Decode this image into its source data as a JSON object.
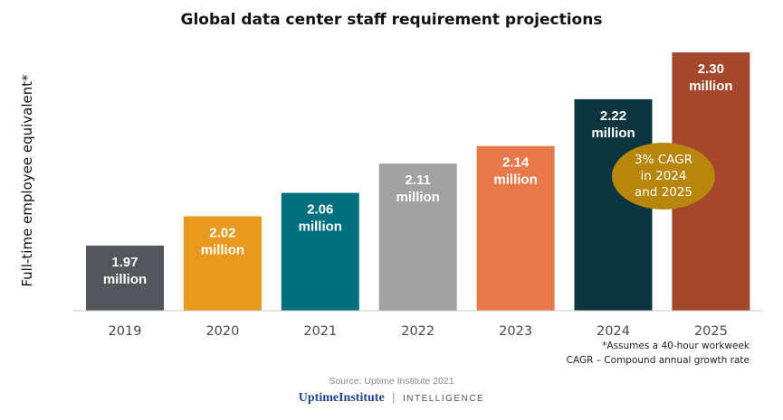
{
  "title": "Global data center staff requirement projections",
  "notes": [
    "*Assumes a 40-hour workweek",
    "CAGR – Compound annual growth rate"
  ],
  "source": "Source: Uptime Institute 2021",
  "brand": {
    "name": "UptimeInstitute",
    "separator": "|",
    "sub": "INTELLIGENCE"
  },
  "callout": {
    "lines": [
      "3% CAGR",
      "in 2024",
      "and 2025"
    ],
    "color": "#b8860b"
  },
  "chart_data": {
    "type": "bar",
    "title": "Global data center staff requirement projections",
    "ylabel": "Full-time employee equivalent*",
    "xlabel": "",
    "ylim": [
      0,
      2.3
    ],
    "grid": false,
    "categories": [
      "2019",
      "2020",
      "2021",
      "2022",
      "2023",
      "2024",
      "2025"
    ],
    "values": [
      1.97,
      2.02,
      2.06,
      2.11,
      2.14,
      2.22,
      2.3
    ],
    "value_labels": [
      "1.97",
      "2.02",
      "2.06",
      "2.11",
      "2.14",
      "2.22",
      "2.30"
    ],
    "unit_label": "million",
    "colors": [
      "#53575c",
      "#e89a1f",
      "#00707e",
      "#a2a2a2",
      "#e8794a",
      "#0d3540",
      "#a5472d"
    ]
  }
}
